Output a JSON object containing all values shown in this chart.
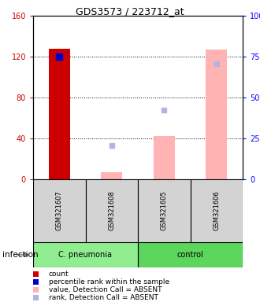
{
  "title": "GDS3573 / 223712_at",
  "samples": [
    "GSM321607",
    "GSM321608",
    "GSM321605",
    "GSM321606"
  ],
  "ylim_left": [
    0,
    160
  ],
  "ylim_right": [
    0,
    100
  ],
  "yticks_left": [
    0,
    40,
    80,
    120,
    160
  ],
  "ytick_labels_left": [
    "0",
    "40",
    "80",
    "120",
    "160"
  ],
  "yticks_right": [
    0,
    25,
    50,
    75,
    100
  ],
  "ytick_labels_right": [
    "0",
    "25",
    "50",
    "75",
    "100%"
  ],
  "count_color": "#cc0000",
  "rank_color": "#0000cc",
  "absent_value_color": "#ffb3b3",
  "absent_rank_color": "#b3b3e6",
  "bar_width": 0.4,
  "count_values": [
    128,
    null,
    null,
    null
  ],
  "rank_values": [
    120,
    null,
    null,
    null
  ],
  "absent_value_values": [
    null,
    7,
    42,
    127
  ],
  "absent_rank_values": [
    null,
    33,
    68,
    113
  ],
  "group_label": "infection",
  "cpneumonia_color": "#90ee90",
  "control_color": "#5cd65c",
  "sample_bg_color": "#d3d3d3",
  "legend_items": [
    {
      "color": "#cc0000",
      "label": "count"
    },
    {
      "color": "#0000cc",
      "label": "percentile rank within the sample"
    },
    {
      "color": "#ffb3b3",
      "label": "value, Detection Call = ABSENT"
    },
    {
      "color": "#b3b3e6",
      "label": "rank, Detection Call = ABSENT"
    }
  ]
}
